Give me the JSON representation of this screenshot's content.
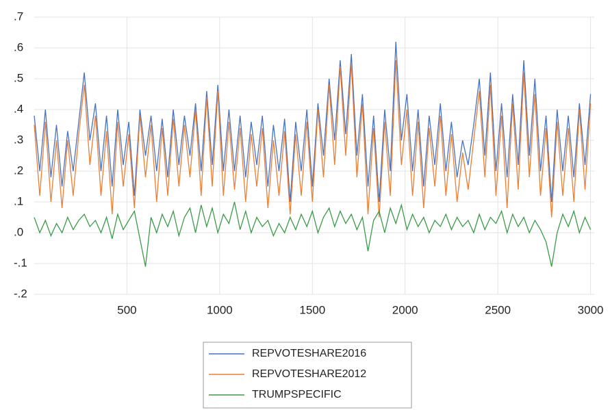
{
  "chart_data": {
    "type": "line",
    "x": [
      0,
      30,
      60,
      90,
      120,
      150,
      180,
      210,
      240,
      270,
      300,
      330,
      360,
      390,
      420,
      450,
      480,
      510,
      540,
      570,
      600,
      630,
      660,
      690,
      720,
      750,
      780,
      810,
      840,
      870,
      900,
      930,
      960,
      990,
      1020,
      1050,
      1080,
      1110,
      1140,
      1170,
      1200,
      1230,
      1260,
      1290,
      1320,
      1350,
      1380,
      1410,
      1440,
      1470,
      1500,
      1530,
      1560,
      1590,
      1620,
      1650,
      1680,
      1710,
      1740,
      1770,
      1800,
      1830,
      1860,
      1890,
      1920,
      1950,
      1980,
      2010,
      2040,
      2070,
      2100,
      2130,
      2160,
      2190,
      2220,
      2250,
      2280,
      2310,
      2340,
      2370,
      2400,
      2430,
      2460,
      2490,
      2520,
      2550,
      2580,
      2610,
      2640,
      2670,
      2700,
      2730,
      2760,
      2790,
      2820,
      2850,
      2880,
      2910,
      2940,
      2970,
      3000
    ],
    "series": [
      {
        "name": "REPVOTESHARE2016",
        "color": "#4472c4",
        "values": [
          0.38,
          0.2,
          0.4,
          0.18,
          0.35,
          0.15,
          0.33,
          0.2,
          0.36,
          0.52,
          0.3,
          0.42,
          0.2,
          0.38,
          0.15,
          0.4,
          0.22,
          0.36,
          0.12,
          0.4,
          0.25,
          0.38,
          0.2,
          0.37,
          0.18,
          0.4,
          0.22,
          0.38,
          0.25,
          0.42,
          0.2,
          0.46,
          0.22,
          0.48,
          0.2,
          0.4,
          0.2,
          0.38,
          0.18,
          0.36,
          0.22,
          0.38,
          0.15,
          0.35,
          0.2,
          0.37,
          0.1,
          0.36,
          0.2,
          0.4,
          0.15,
          0.42,
          0.25,
          0.5,
          0.3,
          0.56,
          0.32,
          0.58,
          0.25,
          0.45,
          0.15,
          0.38,
          0.1,
          0.4,
          0.2,
          0.62,
          0.3,
          0.45,
          0.2,
          0.4,
          0.15,
          0.38,
          0.22,
          0.42,
          0.2,
          0.36,
          0.18,
          0.3,
          0.22,
          0.35,
          0.5,
          0.25,
          0.52,
          0.2,
          0.42,
          0.18,
          0.45,
          0.22,
          0.56,
          0.25,
          0.5,
          0.2,
          0.38,
          0.1,
          0.4,
          0.2,
          0.38,
          0.18,
          0.42,
          0.22,
          0.45
        ]
      },
      {
        "name": "REPVOTESHARE2012",
        "color": "#ed7d31",
        "values": [
          0.35,
          0.12,
          0.36,
          0.1,
          0.3,
          0.08,
          0.3,
          0.12,
          0.32,
          0.48,
          0.22,
          0.38,
          0.12,
          0.33,
          0.06,
          0.36,
          0.15,
          0.32,
          0.08,
          0.38,
          0.18,
          0.35,
          0.1,
          0.34,
          0.12,
          0.37,
          0.15,
          0.35,
          0.18,
          0.4,
          0.12,
          0.44,
          0.15,
          0.46,
          0.12,
          0.36,
          0.14,
          0.34,
          0.1,
          0.32,
          0.15,
          0.34,
          0.08,
          0.3,
          0.12,
          0.33,
          0.06,
          0.32,
          0.12,
          0.36,
          0.1,
          0.4,
          0.18,
          0.48,
          0.22,
          0.54,
          0.25,
          0.55,
          0.18,
          0.42,
          0.06,
          0.34,
          0.05,
          0.36,
          0.12,
          0.56,
          0.22,
          0.4,
          0.12,
          0.36,
          0.08,
          0.34,
          0.15,
          0.38,
          0.12,
          0.32,
          0.1,
          0.26,
          0.14,
          0.3,
          0.46,
          0.18,
          0.48,
          0.12,
          0.38,
          0.08,
          0.42,
          0.14,
          0.52,
          0.18,
          0.45,
          0.12,
          0.34,
          0.05,
          0.36,
          0.12,
          0.34,
          0.1,
          0.4,
          0.14,
          0.42
        ]
      },
      {
        "name": "TRUMPSPECIFIC",
        "color": "#3a9a47",
        "values": [
          0.05,
          0.0,
          0.04,
          -0.01,
          0.03,
          0.0,
          0.05,
          0.01,
          0.04,
          0.06,
          0.02,
          0.04,
          0.0,
          0.05,
          -0.02,
          0.06,
          0.01,
          0.04,
          0.07,
          -0.02,
          -0.11,
          0.05,
          0.0,
          0.06,
          0.02,
          0.07,
          -0.01,
          0.05,
          0.08,
          0.0,
          0.09,
          0.02,
          0.08,
          0.0,
          0.06,
          0.03,
          0.1,
          0.01,
          0.07,
          0.0,
          0.05,
          0.02,
          0.04,
          -0.01,
          0.03,
          0.0,
          0.05,
          0.01,
          0.06,
          0.02,
          0.07,
          0.0,
          0.05,
          0.08,
          0.02,
          0.07,
          0.03,
          0.06,
          0.01,
          0.05,
          -0.06,
          0.04,
          0.07,
          0.0,
          0.08,
          0.03,
          0.09,
          0.01,
          0.06,
          0.02,
          0.05,
          0.0,
          0.04,
          0.02,
          0.06,
          0.01,
          0.05,
          0.02,
          0.04,
          0.0,
          0.06,
          0.01,
          0.05,
          0.03,
          0.07,
          0.0,
          0.06,
          0.02,
          0.05,
          0.0,
          0.04,
          0.01,
          -0.03,
          -0.11,
          0.0,
          0.06,
          0.02,
          0.07,
          0.0,
          0.05,
          0.01
        ]
      }
    ],
    "xlim": [
      0,
      3020
    ],
    "xticks": [
      500,
      1000,
      1500,
      2000,
      2500,
      3000
    ],
    "ylim": [
      -0.2,
      0.7
    ],
    "yticks": [
      {
        "value": -0.2,
        "label": "-.2"
      },
      {
        "value": -0.1,
        "label": "-.1"
      },
      {
        "value": 0.0,
        "label": ".0"
      },
      {
        "value": 0.1,
        "label": ".1"
      },
      {
        "value": 0.2,
        "label": ".2"
      },
      {
        "value": 0.3,
        "label": ".3"
      },
      {
        "value": 0.4,
        "label": ".4"
      },
      {
        "value": 0.5,
        "label": ".5"
      },
      {
        "value": 0.6,
        "label": ".6"
      },
      {
        "value": 0.7,
        "label": ".7"
      }
    ],
    "grid": true
  }
}
